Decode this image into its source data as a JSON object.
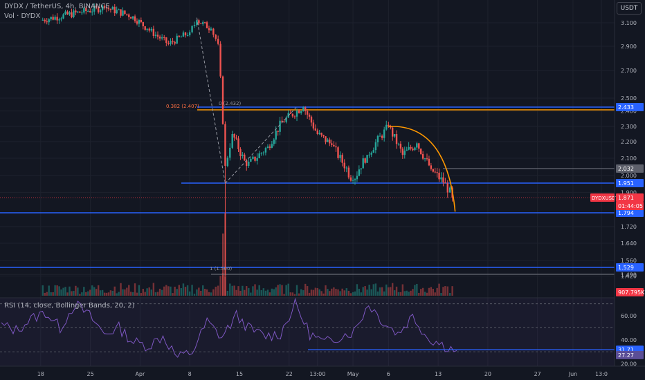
{
  "header": {
    "symbol_line": "DYDX / TetherUS, 4h, BINANCE",
    "volume_line": "Vol · DYDX",
    "currency_button": "USDT"
  },
  "rsi": {
    "legend": "RSI (14, close, Bollinger Bands, 20, 2)",
    "ticks": [
      "60.00",
      "40.00",
      "20.00"
    ],
    "badges": [
      {
        "text": "31.71",
        "color": "#2962ff"
      },
      {
        "text": "27.27",
        "color": "#5b4e96"
      }
    ]
  },
  "price_axis": {
    "ticks": [
      "3.100",
      "2.900",
      "2.700",
      "2.500",
      "2.400",
      "2.300",
      "2.200",
      "2.100",
      "2.000",
      "1.900",
      "1.720",
      "1.640",
      "1.560",
      "1.490",
      "1.420"
    ]
  },
  "price_badges": [
    {
      "text": "2.433",
      "color": "#2962ff"
    },
    {
      "text": "2.032",
      "color": "#5d606b"
    },
    {
      "text": "1.951",
      "color": "#2962ff"
    },
    {
      "text": "1.871",
      "color": "#f23645"
    },
    {
      "text": "01:44:05",
      "color": "#f23645"
    },
    {
      "text": "1.794",
      "color": "#2962ff"
    },
    {
      "text": "1.529",
      "color": "#2962ff"
    },
    {
      "text": "907.795K",
      "color": "#f23645"
    }
  ],
  "annotations": {
    "fib_382": "0.382 (2.407)",
    "fib_0": "0 (2.432)",
    "fib_1": "1 (1.500)",
    "symbol_tag": "DYDXUSDT"
  },
  "time_axis": {
    "labels": [
      "18",
      "25",
      "Apr",
      "8",
      "15",
      "22",
      "13:00",
      "May",
      "6",
      "13",
      "20",
      "27",
      "Jun",
      "13:0"
    ]
  },
  "colors": {
    "background": "#131722",
    "up": "#26a69a",
    "down": "#ef5350",
    "horizontal_lines": "#2962ff",
    "fib_line": "#ff9800",
    "arc": "#ff9800",
    "rsi_line": "#7e57c2"
  },
  "chart_data": [
    {
      "type": "candlestick",
      "title": "DYDX / TetherUS, 4h, BINANCE",
      "y_range": [
        1.4,
        3.2
      ],
      "x_range": [
        "Mar 11",
        "Jun 5"
      ],
      "key_points": [
        {
          "date": "Mar 18",
          "close": 3.12
        },
        {
          "date": "Mar 27",
          "close": 3.22
        },
        {
          "date": "Mar 31",
          "close": 3.15
        },
        {
          "date": "Apr 2",
          "close": 3.05
        },
        {
          "date": "Apr 5",
          "close": 2.92
        },
        {
          "date": "Apr 8",
          "close": 3.02
        },
        {
          "date": "Apr 9",
          "close": 3.12
        },
        {
          "date": "Apr 11",
          "close": 3.05
        },
        {
          "date": "Apr 12",
          "close": 2.92
        },
        {
          "date": "Apr 13",
          "close": 2.05
        },
        {
          "date": "Apr 14",
          "close": 2.25
        },
        {
          "date": "Apr 16",
          "close": 2.05
        },
        {
          "date": "Apr 19",
          "close": 2.17
        },
        {
          "date": "Apr 21",
          "close": 2.33
        },
        {
          "date": "Apr 24",
          "close": 2.43
        },
        {
          "date": "Apr 26",
          "close": 2.25
        },
        {
          "date": "Apr 28",
          "close": 2.18
        },
        {
          "date": "May 1",
          "close": 1.97
        },
        {
          "date": "May 3",
          "close": 2.12
        },
        {
          "date": "May 6",
          "close": 2.3
        },
        {
          "date": "May 8",
          "close": 2.12
        },
        {
          "date": "May 10",
          "close": 2.19
        },
        {
          "date": "May 12",
          "close": 2.03
        },
        {
          "date": "May 14",
          "close": 1.95
        },
        {
          "date": "May 15",
          "close": 1.871
        }
      ],
      "horizontal_levels": [
        2.433,
        2.407,
        2.032,
        1.951,
        1.794,
        1.529,
        1.5
      ],
      "last_price": 1.871,
      "volume_last": "907.795K"
    },
    {
      "type": "line",
      "title": "RSI (14, close, Bollinger Bands, 20, 2)",
      "y_range": [
        18,
        75
      ],
      "series": [
        {
          "name": "RSI",
          "values": [
            52,
            48,
            57,
            63,
            50,
            70,
            60,
            45,
            50,
            38,
            35,
            43,
            25,
            30,
            55,
            42,
            60,
            48,
            43,
            45,
            70,
            45,
            37,
            43,
            47,
            70,
            55,
            45,
            60,
            42,
            36,
            31
          ]
        }
      ],
      "last_values": [
        31.71,
        27.27
      ]
    }
  ]
}
